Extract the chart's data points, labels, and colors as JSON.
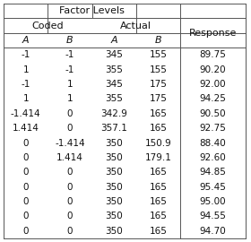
{
  "title": "Factor Levels",
  "rows": [
    [
      "-1",
      "-1",
      "345",
      "155",
      "89.75"
    ],
    [
      "1",
      "-1",
      "355",
      "155",
      "90.20"
    ],
    [
      "-1",
      "1",
      "345",
      "175",
      "92.00"
    ],
    [
      "1",
      "1",
      "355",
      "175",
      "94.25"
    ],
    [
      "-1.414",
      "0",
      "342.9",
      "165",
      "90.50"
    ],
    [
      "1.414",
      "0",
      "357.1",
      "165",
      "92.75"
    ],
    [
      "0",
      "-1.414",
      "350",
      "150.9",
      "88.40"
    ],
    [
      "0",
      "1.414",
      "350",
      "179.1",
      "92.60"
    ],
    [
      "0",
      "0",
      "350",
      "165",
      "94.85"
    ],
    [
      "0",
      "0",
      "350",
      "165",
      "95.45"
    ],
    [
      "0",
      "0",
      "350",
      "165",
      "95.00"
    ],
    [
      "0",
      "0",
      "350",
      "165",
      "94.55"
    ],
    [
      "0",
      "0",
      "350",
      "165",
      "94.70"
    ]
  ],
  "bg_color": "#ffffff",
  "border_color": "#555555",
  "text_color": "#111111",
  "figsize": [
    2.8,
    2.7
  ],
  "dpi": 100
}
